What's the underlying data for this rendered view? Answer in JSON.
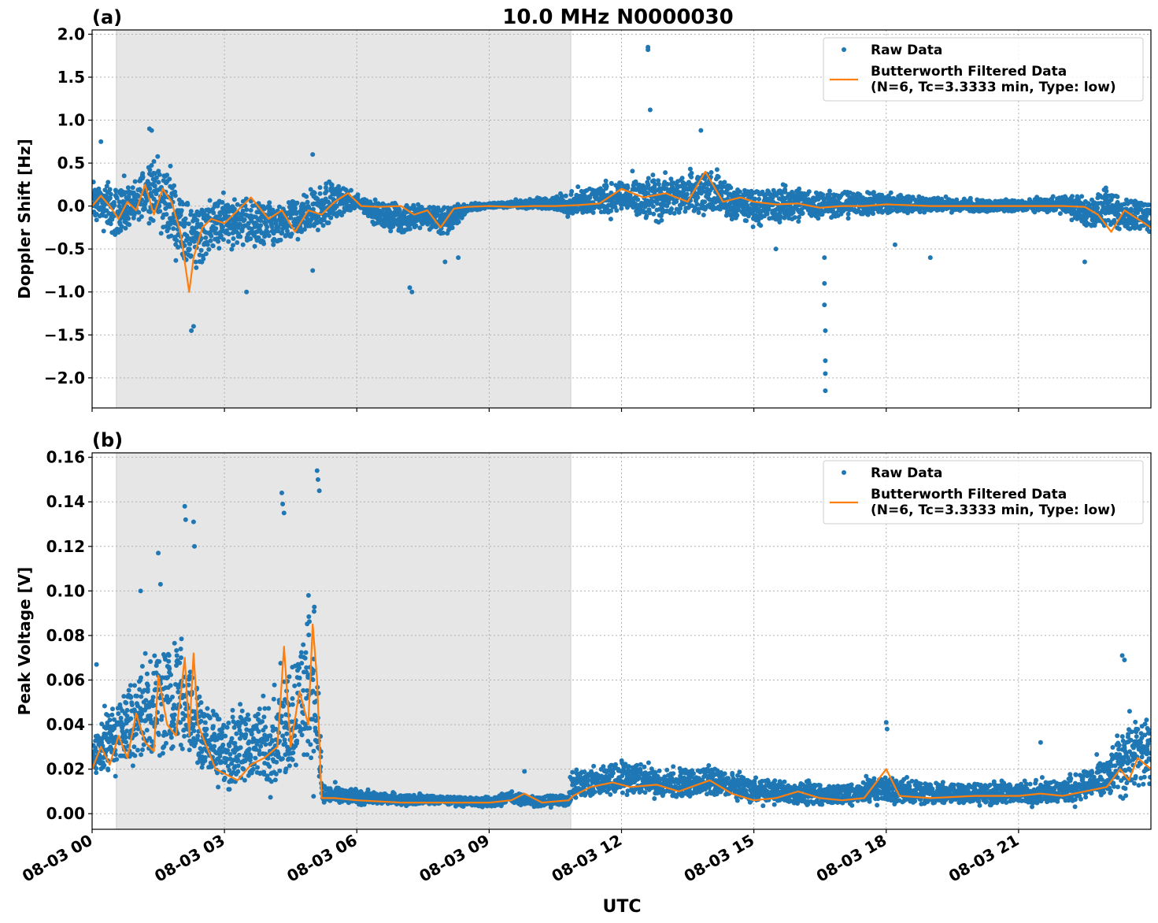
{
  "figure": {
    "title": "10.0 MHz N0000030",
    "xlabel": "UTC"
  },
  "legend": {
    "raw_label": "Raw Data",
    "filtered_label_line1": "Butterworth Filtered Data",
    "filtered_label_line2": "(N=6, Tc=3.3333 min, Type: low)"
  },
  "colors": {
    "raw": "#1f77b4",
    "filtered": "#ff7f0e",
    "night_shade": "#e6e6e6",
    "grid": "#b0b0b0"
  },
  "chart_data": [
    {
      "type": "scatter",
      "panel_label": "(a)",
      "ylabel": "Doppler Shift [Hz]",
      "x_unit": "hours UTC since 08-03 00:00",
      "xlim": [
        0,
        24
      ],
      "ylim": [
        -2.35,
        2.05
      ],
      "xticks": [
        0,
        3,
        6,
        9,
        12,
        15,
        18,
        21
      ],
      "xtick_labels": [
        "08-03 00",
        "08-03 03",
        "08-03 06",
        "08-03 09",
        "08-03 12",
        "08-03 15",
        "08-03 18",
        "08-03 21"
      ],
      "yticks": [
        -2.0,
        -1.5,
        -1.0,
        -0.5,
        0.0,
        0.5,
        1.0,
        1.5,
        2.0
      ],
      "ytick_labels": [
        "−2.0",
        "−1.5",
        "−1.0",
        "−0.5",
        "0.0",
        "0.5",
        "1.0",
        "1.5",
        "2.0"
      ],
      "grid": true,
      "legend_position": "top-right",
      "shaded_interval": [
        0.55,
        10.85
      ],
      "series": [
        {
          "name": "Raw Data",
          "kind": "scatter-band",
          "x": [
            0.0,
            0.5,
            1.0,
            1.3,
            1.7,
            2.0,
            2.3,
            2.6,
            3.0,
            3.5,
            4.0,
            4.5,
            5.0,
            5.5,
            6.0,
            6.5,
            7.0,
            7.5,
            8.0,
            8.5,
            9.0,
            10.0,
            10.8,
            11.5,
            12.0,
            12.5,
            13.0,
            13.5,
            14.0,
            14.5,
            15.0,
            16.0,
            17.0,
            18.0,
            19.0,
            20.0,
            21.0,
            22.0,
            22.5,
            23.0,
            23.5,
            24.0
          ],
          "y_low": [
            -0.3,
            -0.45,
            -0.4,
            -0.25,
            -0.55,
            -0.8,
            -1.0,
            -0.65,
            -0.6,
            -0.55,
            -0.65,
            -0.55,
            -0.45,
            -0.3,
            -0.05,
            -0.3,
            -0.4,
            -0.3,
            -0.45,
            -0.1,
            -0.03,
            -0.05,
            -0.15,
            -0.2,
            -0.15,
            -0.3,
            -0.25,
            -0.2,
            -0.15,
            -0.3,
            -0.3,
            -0.25,
            -0.2,
            -0.15,
            -0.1,
            -0.1,
            -0.1,
            -0.1,
            -0.35,
            -0.3,
            -0.4,
            -0.35
          ],
          "y_high": [
            0.4,
            0.35,
            0.45,
            0.75,
            0.6,
            0.35,
            0.15,
            0.2,
            0.25,
            0.2,
            0.15,
            0.2,
            0.35,
            0.4,
            0.15,
            0.1,
            0.1,
            0.1,
            0.08,
            0.05,
            0.05,
            0.1,
            0.2,
            0.35,
            0.4,
            0.45,
            0.45,
            0.5,
            0.55,
            0.35,
            0.3,
            0.3,
            0.25,
            0.2,
            0.15,
            0.1,
            0.1,
            0.15,
            0.2,
            0.25,
            0.2,
            0.1
          ],
          "outliers_x": [
            0.2,
            1.3,
            1.35,
            2.25,
            2.3,
            3.5,
            5.0,
            5.0,
            7.2,
            7.25,
            8.0,
            8.3,
            12.6,
            12.6,
            12.65,
            13.8,
            15.5,
            16.6,
            16.6,
            16.6,
            16.62,
            16.62,
            16.62,
            16.62,
            18.2,
            19.0,
            22.5
          ],
          "outliers_y": [
            0.75,
            0.9,
            0.88,
            -1.45,
            -1.4,
            -1.0,
            0.6,
            -0.75,
            -0.95,
            -1.0,
            -0.65,
            -0.6,
            1.85,
            1.82,
            1.12,
            0.88,
            -0.5,
            -0.6,
            -0.9,
            -1.15,
            -1.45,
            -1.8,
            -1.95,
            -2.15,
            -0.45,
            -0.6,
            -0.65
          ]
        },
        {
          "name": "Butterworth Filtered Data (N=6, Tc=3.3333 min, Type: low)",
          "kind": "line",
          "x": [
            0.0,
            0.2,
            0.4,
            0.6,
            0.8,
            1.0,
            1.2,
            1.4,
            1.6,
            1.8,
            2.0,
            2.2,
            2.3,
            2.5,
            2.7,
            3.0,
            3.3,
            3.6,
            4.0,
            4.3,
            4.6,
            4.9,
            5.2,
            5.5,
            5.8,
            6.1,
            6.5,
            7.0,
            7.3,
            7.6,
            7.9,
            8.2,
            8.5,
            9.0,
            9.5,
            10.0,
            10.5,
            11.0,
            11.5,
            12.0,
            12.5,
            13.0,
            13.5,
            13.9,
            14.3,
            14.7,
            15.0,
            15.5,
            16.0,
            16.5,
            17.0,
            17.5,
            18.0,
            19.0,
            20.0,
            21.0,
            22.0,
            22.5,
            22.8,
            23.1,
            23.4,
            23.7,
            24.0
          ],
          "y": [
            0.0,
            0.12,
            0.0,
            -0.15,
            0.05,
            -0.05,
            0.25,
            -0.1,
            0.2,
            0.05,
            -0.3,
            -1.0,
            -0.6,
            -0.25,
            -0.15,
            -0.2,
            -0.05,
            0.1,
            -0.15,
            -0.05,
            -0.3,
            -0.05,
            -0.1,
            0.05,
            0.15,
            0.0,
            -0.01,
            0.0,
            -0.1,
            -0.05,
            -0.25,
            -0.03,
            -0.01,
            0.0,
            -0.01,
            0.0,
            0.0,
            0.01,
            0.03,
            0.2,
            0.1,
            0.15,
            0.05,
            0.4,
            0.05,
            0.1,
            0.05,
            0.02,
            0.03,
            -0.02,
            0.0,
            0.0,
            0.02,
            0.0,
            0.0,
            0.0,
            0.0,
            -0.01,
            -0.1,
            -0.3,
            -0.05,
            -0.15,
            -0.25
          ]
        }
      ]
    },
    {
      "type": "scatter",
      "panel_label": "(b)",
      "ylabel": "Peak Voltage [V]",
      "x_unit": "hours UTC since 08-03 00:00",
      "xlim": [
        0,
        24
      ],
      "ylim": [
        -0.007,
        0.162
      ],
      "xticks": [
        0,
        3,
        6,
        9,
        12,
        15,
        18,
        21
      ],
      "xtick_labels": [
        "08-03 00",
        "08-03 03",
        "08-03 06",
        "08-03 09",
        "08-03 12",
        "08-03 15",
        "08-03 18",
        "08-03 21"
      ],
      "yticks": [
        0.0,
        0.02,
        0.04,
        0.06,
        0.08,
        0.1,
        0.12,
        0.14,
        0.16
      ],
      "ytick_labels": [
        "0.00",
        "0.02",
        "0.04",
        "0.06",
        "0.08",
        "0.10",
        "0.12",
        "0.14",
        "0.16"
      ],
      "grid": true,
      "legend_position": "top-right",
      "shaded_interval": [
        0.55,
        10.85
      ],
      "series": [
        {
          "name": "Raw Data",
          "kind": "scatter-band",
          "x": [
            0.0,
            0.5,
            1.0,
            1.5,
            2.0,
            2.5,
            3.0,
            3.5,
            4.0,
            4.5,
            5.0,
            5.1,
            5.2,
            6.0,
            7.0,
            8.0,
            9.0,
            9.5,
            10.0,
            10.8,
            10.85,
            11.5,
            12.0,
            12.5,
            13.0,
            14.0,
            15.0,
            16.0,
            17.0,
            18.0,
            19.0,
            20.0,
            21.0,
            22.0,
            23.0,
            23.5,
            24.0
          ],
          "y_low": [
            0.008,
            0.012,
            0.014,
            0.015,
            0.014,
            0.01,
            0.005,
            0.004,
            0.003,
            0.003,
            0.003,
            0.003,
            0.002,
            0.003,
            0.003,
            0.003,
            0.002,
            0.003,
            0.002,
            0.002,
            0.003,
            0.005,
            0.006,
            0.005,
            0.004,
            0.005,
            0.003,
            0.002,
            0.002,
            0.002,
            0.002,
            0.002,
            0.002,
            0.002,
            0.003,
            0.002,
            0.003
          ],
          "y_high": [
            0.045,
            0.055,
            0.075,
            0.085,
            0.09,
            0.06,
            0.05,
            0.055,
            0.06,
            0.08,
            0.12,
            0.1,
            0.016,
            0.012,
            0.01,
            0.009,
            0.008,
            0.012,
            0.009,
            0.01,
            0.022,
            0.024,
            0.028,
            0.026,
            0.022,
            0.024,
            0.018,
            0.016,
            0.015,
            0.02,
            0.016,
            0.016,
            0.016,
            0.018,
            0.03,
            0.05,
            0.055
          ],
          "outliers_x": [
            0.1,
            1.1,
            1.5,
            1.55,
            2.1,
            2.12,
            2.3,
            2.32,
            4.3,
            4.32,
            4.35,
            5.1,
            5.12,
            5.15,
            9.8,
            18.0,
            18.02,
            21.5,
            23.35,
            23.4
          ],
          "outliers_y": [
            0.067,
            0.1,
            0.117,
            0.103,
            0.138,
            0.132,
            0.131,
            0.12,
            0.144,
            0.139,
            0.135,
            0.154,
            0.15,
            0.145,
            0.019,
            0.041,
            0.038,
            0.032,
            0.071,
            0.069
          ]
        },
        {
          "name": "Butterworth Filtered Data (N=6, Tc=3.3333 min, Type: low)",
          "kind": "line",
          "x": [
            0.0,
            0.2,
            0.4,
            0.6,
            0.8,
            1.0,
            1.2,
            1.4,
            1.5,
            1.7,
            1.9,
            2.1,
            2.2,
            2.3,
            2.4,
            2.6,
            2.8,
            3.0,
            3.3,
            3.6,
            3.9,
            4.2,
            4.35,
            4.5,
            4.7,
            4.9,
            5.0,
            5.1,
            5.2,
            5.5,
            6.0,
            7.0,
            8.0,
            9.0,
            9.5,
            9.8,
            10.2,
            10.8,
            10.9,
            11.3,
            11.8,
            12.2,
            12.8,
            13.3,
            14.0,
            14.5,
            15.0,
            15.5,
            16.0,
            16.5,
            17.0,
            17.5,
            18.0,
            18.3,
            19.0,
            20.0,
            21.0,
            21.5,
            22.0,
            22.5,
            23.0,
            23.3,
            23.5,
            23.7,
            24.0
          ],
          "y": [
            0.02,
            0.03,
            0.022,
            0.035,
            0.025,
            0.045,
            0.032,
            0.028,
            0.062,
            0.04,
            0.035,
            0.07,
            0.035,
            0.072,
            0.04,
            0.03,
            0.02,
            0.018,
            0.015,
            0.022,
            0.025,
            0.03,
            0.075,
            0.03,
            0.055,
            0.04,
            0.085,
            0.06,
            0.007,
            0.007,
            0.006,
            0.005,
            0.005,
            0.005,
            0.006,
            0.009,
            0.005,
            0.006,
            0.008,
            0.012,
            0.014,
            0.012,
            0.013,
            0.01,
            0.015,
            0.009,
            0.006,
            0.007,
            0.01,
            0.007,
            0.006,
            0.007,
            0.02,
            0.008,
            0.007,
            0.008,
            0.008,
            0.009,
            0.008,
            0.01,
            0.012,
            0.02,
            0.015,
            0.025,
            0.02
          ]
        }
      ]
    }
  ]
}
